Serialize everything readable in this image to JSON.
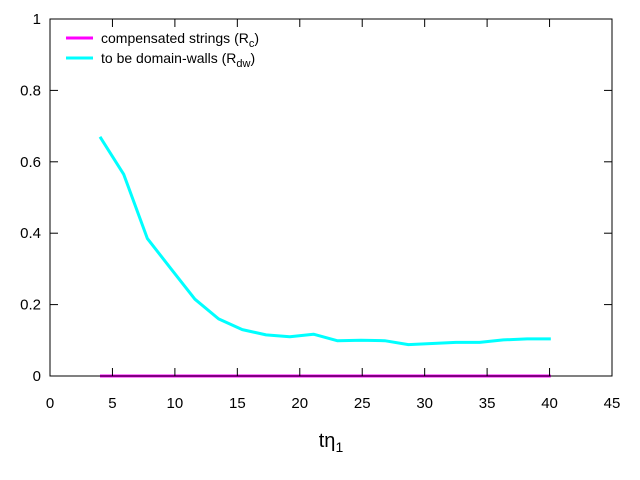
{
  "chart_data": {
    "type": "line",
    "title": "",
    "xlabel": "tη",
    "xlabel_sub": "1",
    "ylabel": "",
    "xlim": [
      0,
      45
    ],
    "ylim": [
      0,
      1
    ],
    "xticks": [
      0,
      5,
      10,
      15,
      20,
      25,
      30,
      35,
      40,
      45
    ],
    "yticks": [
      0,
      0.2,
      0.4,
      0.6,
      0.8,
      1
    ],
    "ytick_labels": [
      "0",
      "0.2",
      "0.4",
      "0.6",
      "0.8",
      "1"
    ],
    "grid": false,
    "legend_position": "top-left",
    "series": [
      {
        "name": "compensated strings (R",
        "name_sub": "c",
        "name_suffix": ")",
        "color": "#ff00ff",
        "x": [
          4,
          5.9,
          7.8,
          9.7,
          11.6,
          13.5,
          15.4,
          17.3,
          19.2,
          21.1,
          23,
          24.9,
          26.8,
          28.7,
          30.6,
          32.5,
          34.4,
          36.3,
          38.2,
          40.1
        ],
        "y": [
          0,
          0,
          0,
          0,
          0,
          0,
          0,
          0,
          0,
          0,
          0,
          0,
          0,
          0,
          0,
          0,
          0,
          0,
          0,
          0
        ]
      },
      {
        "name": "to be domain-walls (R",
        "name_sub": "dw",
        "name_suffix": ")",
        "color": "#00ffff",
        "x": [
          4,
          5.9,
          7.8,
          9.7,
          11.6,
          13.5,
          15.4,
          17.3,
          19.2,
          21.1,
          23,
          24.9,
          26.8,
          28.7,
          30.6,
          32.5,
          34.4,
          36.3,
          38.2,
          40.1
        ],
        "y": [
          0.67,
          0.565,
          0.385,
          0.3,
          0.215,
          0.16,
          0.13,
          0.115,
          0.11,
          0.117,
          0.099,
          0.1,
          0.099,
          0.088,
          0.091,
          0.094,
          0.094,
          0.101,
          0.104,
          0.104
        ]
      }
    ]
  }
}
